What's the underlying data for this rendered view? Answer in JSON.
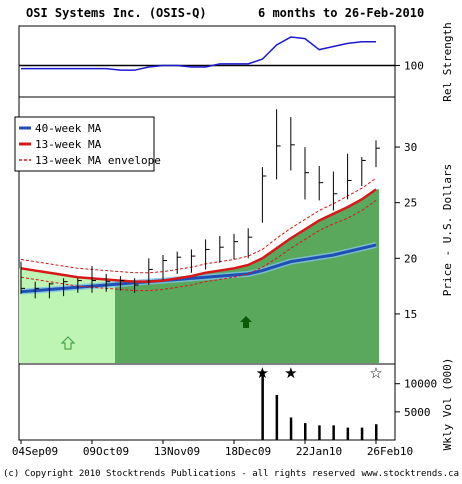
{
  "header": {
    "company": "OSI Systems Inc. (OSIS-Q)",
    "period": "6 months to 26-Feb-2010"
  },
  "footer": {
    "copyright": "(c) Copyright 2010 Stocktrends Publications - all rights reserved",
    "site": "www.stocktrends.ca"
  },
  "colors": {
    "ma40": "#1f4fb4",
    "ma13": "#d81818",
    "envelope": "#d81818",
    "price_bar": "#000000",
    "light_green_zone": "#bff5b4",
    "dark_green_zone": "#5aa85c",
    "rel_strength": "#1a1ad0"
  },
  "chart_data": [
    {
      "type": "line",
      "title": "Rel Strength",
      "ylabel": "Rel Strength",
      "yticks": [
        100
      ],
      "ylim": [
        80,
        125
      ],
      "x": [
        "04Sep09",
        "11Sep09",
        "18Sep09",
        "25Sep09",
        "02Oct09",
        "09Oct09",
        "16Oct09",
        "23Oct09",
        "30Oct09",
        "06Nov09",
        "13Nov09",
        "20Nov09",
        "27Nov09",
        "04Dec09",
        "11Dec09",
        "18Dec09",
        "25Dec09",
        "01Jan10",
        "08Jan10",
        "15Jan10",
        "22Jan10",
        "29Jan10",
        "05Feb10",
        "12Feb10",
        "19Feb10",
        "26Feb10"
      ],
      "values": [
        98,
        98,
        98,
        98,
        98,
        98,
        98,
        97,
        97,
        99,
        100,
        100,
        99,
        99,
        101,
        101,
        101,
        104,
        113,
        118,
        117,
        110,
        112,
        114,
        115,
        115
      ]
    },
    {
      "type": "bar",
      "subtype": "price-weekly-range-with-moving-averages",
      "ylabel": "Price - U.S. Dollars",
      "yticks": [
        15,
        20,
        25,
        30
      ],
      "ylim": [
        10.5,
        34.5
      ],
      "x": [
        "04Sep09",
        "11Sep09",
        "18Sep09",
        "25Sep09",
        "02Oct09",
        "09Oct09",
        "16Oct09",
        "23Oct09",
        "30Oct09",
        "06Nov09",
        "13Nov09",
        "20Nov09",
        "27Nov09",
        "04Dec09",
        "11Dec09",
        "18Dec09",
        "25Dec09",
        "01Jan10",
        "08Jan10",
        "15Jan10",
        "22Jan10",
        "29Jan10",
        "05Feb10",
        "12Feb10",
        "19Feb10",
        "26Feb10"
      ],
      "xtick_labels": [
        "04Sep09",
        "09Oct09",
        "13Nov09",
        "18Dec09",
        "22Jan10",
        "26Feb10"
      ],
      "high": [
        19.7,
        17.9,
        17.8,
        18.2,
        18.2,
        19.3,
        18.6,
        18.4,
        18.2,
        20.0,
        20.3,
        20.6,
        20.8,
        21.7,
        22.0,
        22.2,
        22.7,
        28.2,
        33.4,
        32.7,
        30.0,
        28.3,
        27.8,
        29.4,
        29.1,
        30.6
      ],
      "low": [
        16.8,
        16.4,
        16.4,
        16.6,
        16.9,
        16.9,
        17.0,
        17.1,
        16.9,
        17.6,
        18.1,
        18.6,
        18.7,
        19.0,
        19.6,
        19.9,
        20.0,
        23.2,
        27.1,
        27.9,
        25.3,
        25.2,
        24.3,
        25.3,
        26.5,
        28.2
      ],
      "close": [
        17.3,
        17.3,
        17.7,
        17.9,
        18.0,
        18.0,
        17.9,
        18.0,
        17.6,
        19.0,
        19.8,
        20.1,
        20.2,
        20.8,
        21.0,
        21.5,
        21.9,
        27.4,
        30.1,
        30.2,
        27.7,
        26.8,
        25.8,
        27.0,
        28.8,
        29.9
      ],
      "series": [
        {
          "name": "40-week MA",
          "values": [
            17.0,
            17.1,
            17.2,
            17.3,
            17.4,
            17.5,
            17.6,
            17.7,
            17.8,
            17.9,
            18.0,
            18.1,
            18.2,
            18.3,
            18.4,
            18.5,
            18.6,
            18.9,
            19.3,
            19.7,
            19.9,
            20.1,
            20.3,
            20.6,
            20.9,
            21.2
          ]
        },
        {
          "name": "13-week MA",
          "values": [
            19.1,
            18.9,
            18.7,
            18.5,
            18.3,
            18.2,
            18.1,
            18.0,
            17.9,
            17.9,
            18.0,
            18.2,
            18.4,
            18.7,
            18.9,
            19.1,
            19.4,
            20.0,
            20.9,
            21.8,
            22.6,
            23.4,
            24.0,
            24.6,
            25.3,
            26.2
          ]
        },
        {
          "name": "13-week MA envelope",
          "upper": [
            19.9,
            19.7,
            19.5,
            19.3,
            19.1,
            19.0,
            18.9,
            18.8,
            18.7,
            18.7,
            18.8,
            19.0,
            19.2,
            19.5,
            19.7,
            19.9,
            20.2,
            20.8,
            21.8,
            22.7,
            23.5,
            24.3,
            24.9,
            25.6,
            26.3,
            27.2
          ],
          "lower": [
            18.3,
            18.1,
            17.9,
            17.7,
            17.5,
            17.4,
            17.3,
            17.2,
            17.1,
            17.1,
            17.2,
            17.4,
            17.6,
            17.9,
            18.1,
            18.3,
            18.6,
            19.2,
            20.0,
            20.9,
            21.7,
            22.5,
            23.1,
            23.6,
            24.3,
            25.2
          ]
        }
      ],
      "legend": "top-left"
    },
    {
      "type": "bar",
      "title": "Wkly Vol (000)",
      "ylabel": "Wkly Vol (000)",
      "yticks": [
        5000,
        10000
      ],
      "ylim": [
        0,
        13500
      ],
      "x": [
        "04Sep09",
        "11Sep09",
        "18Sep09",
        "25Sep09",
        "02Oct09",
        "09Oct09",
        "16Oct09",
        "23Oct09",
        "30Oct09",
        "06Nov09",
        "13Nov09",
        "20Nov09",
        "27Nov09",
        "04Dec09",
        "11Dec09",
        "18Dec09",
        "25Dec09",
        "01Jan10",
        "08Jan10",
        "15Jan10",
        "22Jan10",
        "29Jan10",
        "05Feb10",
        "12Feb10",
        "19Feb10",
        "26Feb10"
      ],
      "values": [
        0,
        0,
        0,
        0,
        0,
        0,
        0,
        0,
        0,
        0,
        0,
        0,
        0,
        0,
        0,
        0,
        0,
        12300,
        8000,
        4000,
        3000,
        2600,
        2600,
        2200,
        2200,
        2800
      ],
      "markers": [
        {
          "x": "01Jan10",
          "symbol": "★"
        },
        {
          "x": "15Jan10",
          "symbol": "★"
        },
        {
          "x": "26Feb10",
          "symbol": "☆"
        }
      ]
    }
  ]
}
